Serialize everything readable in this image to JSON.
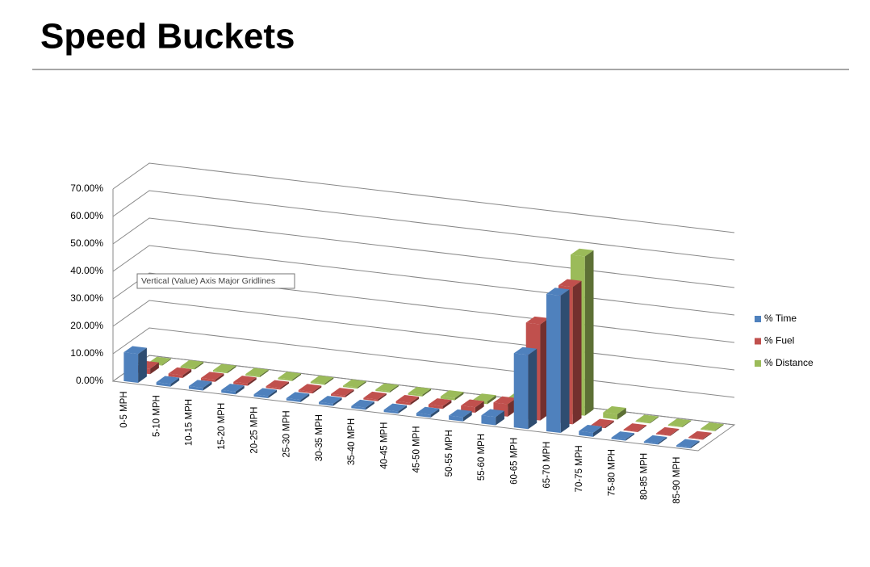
{
  "header": {
    "title": "Speed Buckets"
  },
  "chart_data": {
    "type": "bar3d",
    "annotation": "Vertical (Value) Axis Major Gridlines",
    "categories": [
      "0-5 MPH",
      "5-10 MPH",
      "10-15 MPH",
      "15-20 MPH",
      "20-25 MPH",
      "25-30 MPH",
      "30-35 MPH",
      "35-40 MPH",
      "40-45 MPH",
      "45-50 MPH",
      "50-55 MPH",
      "55-60 MPH",
      "60-65 MPH",
      "65-70 MPH",
      "70-75 MPH",
      "75-80 MPH",
      "80-85 MPH",
      "85-90 MPH"
    ],
    "series": [
      {
        "name": "% Time",
        "color": "#4f81bd",
        "values": [
          10.5,
          1,
          1,
          1,
          0.8,
          0.8,
          0.8,
          0.8,
          0.8,
          1,
          1.5,
          3,
          27,
          50,
          1.5,
          0.5,
          0.5,
          0.5
        ]
      },
      {
        "name": "% Fuel",
        "color": "#c0504d",
        "values": [
          2,
          1,
          0.8,
          0.8,
          0.6,
          0.6,
          0.6,
          0.6,
          0.8,
          1,
          2,
          4.5,
          35,
          50,
          0.5,
          0.3,
          0.3,
          0.3
        ]
      },
      {
        "name": "% Distance",
        "color": "#9bbb59",
        "values": [
          0.3,
          0.5,
          0.5,
          0.5,
          0.5,
          0.5,
          0.5,
          0.5,
          0.6,
          0.8,
          1,
          2.5,
          30,
          58,
          2,
          0.3,
          0.3,
          0.3
        ]
      }
    ],
    "ylim": [
      0,
      70
    ],
    "yticks": [
      {
        "value": 0,
        "label": "0.00%"
      },
      {
        "value": 10,
        "label": "10.00%"
      },
      {
        "value": 20,
        "label": "20.00%"
      },
      {
        "value": 30,
        "label": "30.00%"
      },
      {
        "value": 40,
        "label": "40.00%"
      },
      {
        "value": 50,
        "label": "50.00%"
      },
      {
        "value": 60,
        "label": "60.00%"
      },
      {
        "value": 70,
        "label": "70.00%"
      }
    ],
    "grid": true
  }
}
